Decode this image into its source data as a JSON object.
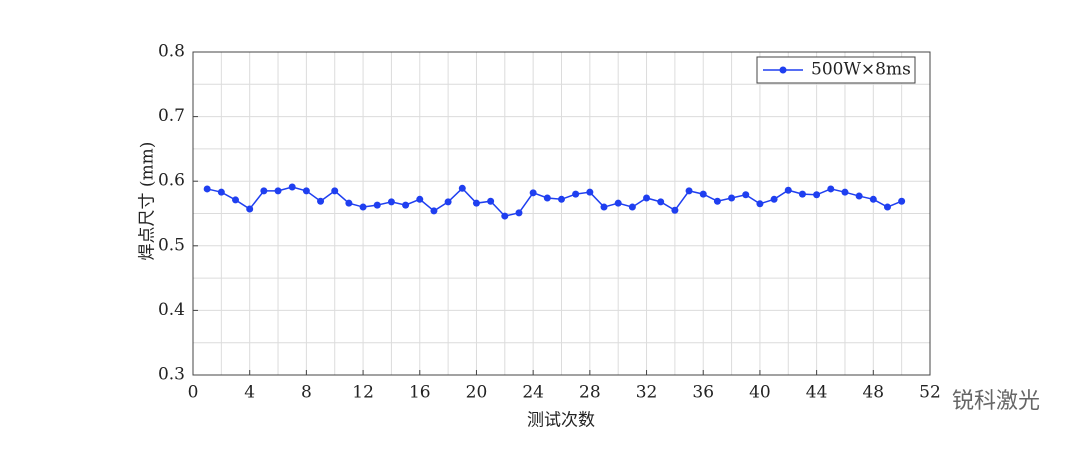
{
  "chart_data": {
    "type": "line",
    "x": [
      1,
      2,
      3,
      4,
      5,
      6,
      7,
      8,
      9,
      10,
      11,
      12,
      13,
      14,
      15,
      16,
      17,
      18,
      19,
      20,
      21,
      22,
      23,
      24,
      25,
      26,
      27,
      28,
      29,
      30,
      31,
      32,
      33,
      34,
      35,
      36,
      37,
      38,
      39,
      40,
      41,
      42,
      43,
      44,
      45,
      46,
      47,
      48,
      49,
      50
    ],
    "series": [
      {
        "name": "500W×8ms",
        "color": "#1f3ff0",
        "values": [
          0.588,
          0.583,
          0.571,
          0.557,
          0.585,
          0.585,
          0.591,
          0.585,
          0.569,
          0.585,
          0.566,
          0.56,
          0.563,
          0.568,
          0.563,
          0.572,
          0.554,
          0.568,
          0.589,
          0.566,
          0.569,
          0.546,
          0.551,
          0.582,
          0.574,
          0.572,
          0.58,
          0.583,
          0.56,
          0.566,
          0.56,
          0.574,
          0.568,
          0.555,
          0.585,
          0.58,
          0.569,
          0.574,
          0.579,
          0.565,
          0.572,
          0.586,
          0.58,
          0.579,
          0.588,
          0.583,
          0.577,
          0.572,
          0.56,
          0.569
        ]
      }
    ],
    "xlabel": "测试次数",
    "ylabel": "焊点尺寸 (mm)",
    "xlim": [
      0,
      52
    ],
    "ylim": [
      0.3,
      0.8
    ],
    "xticks": [
      0,
      4,
      8,
      12,
      16,
      20,
      24,
      28,
      32,
      36,
      40,
      44,
      48,
      52
    ],
    "yticks": [
      0.3,
      0.4,
      0.5,
      0.6,
      0.7,
      0.8
    ],
    "grid": true,
    "minor_grid": true,
    "legend": "upper right",
    "watermark": "锐科激光"
  }
}
